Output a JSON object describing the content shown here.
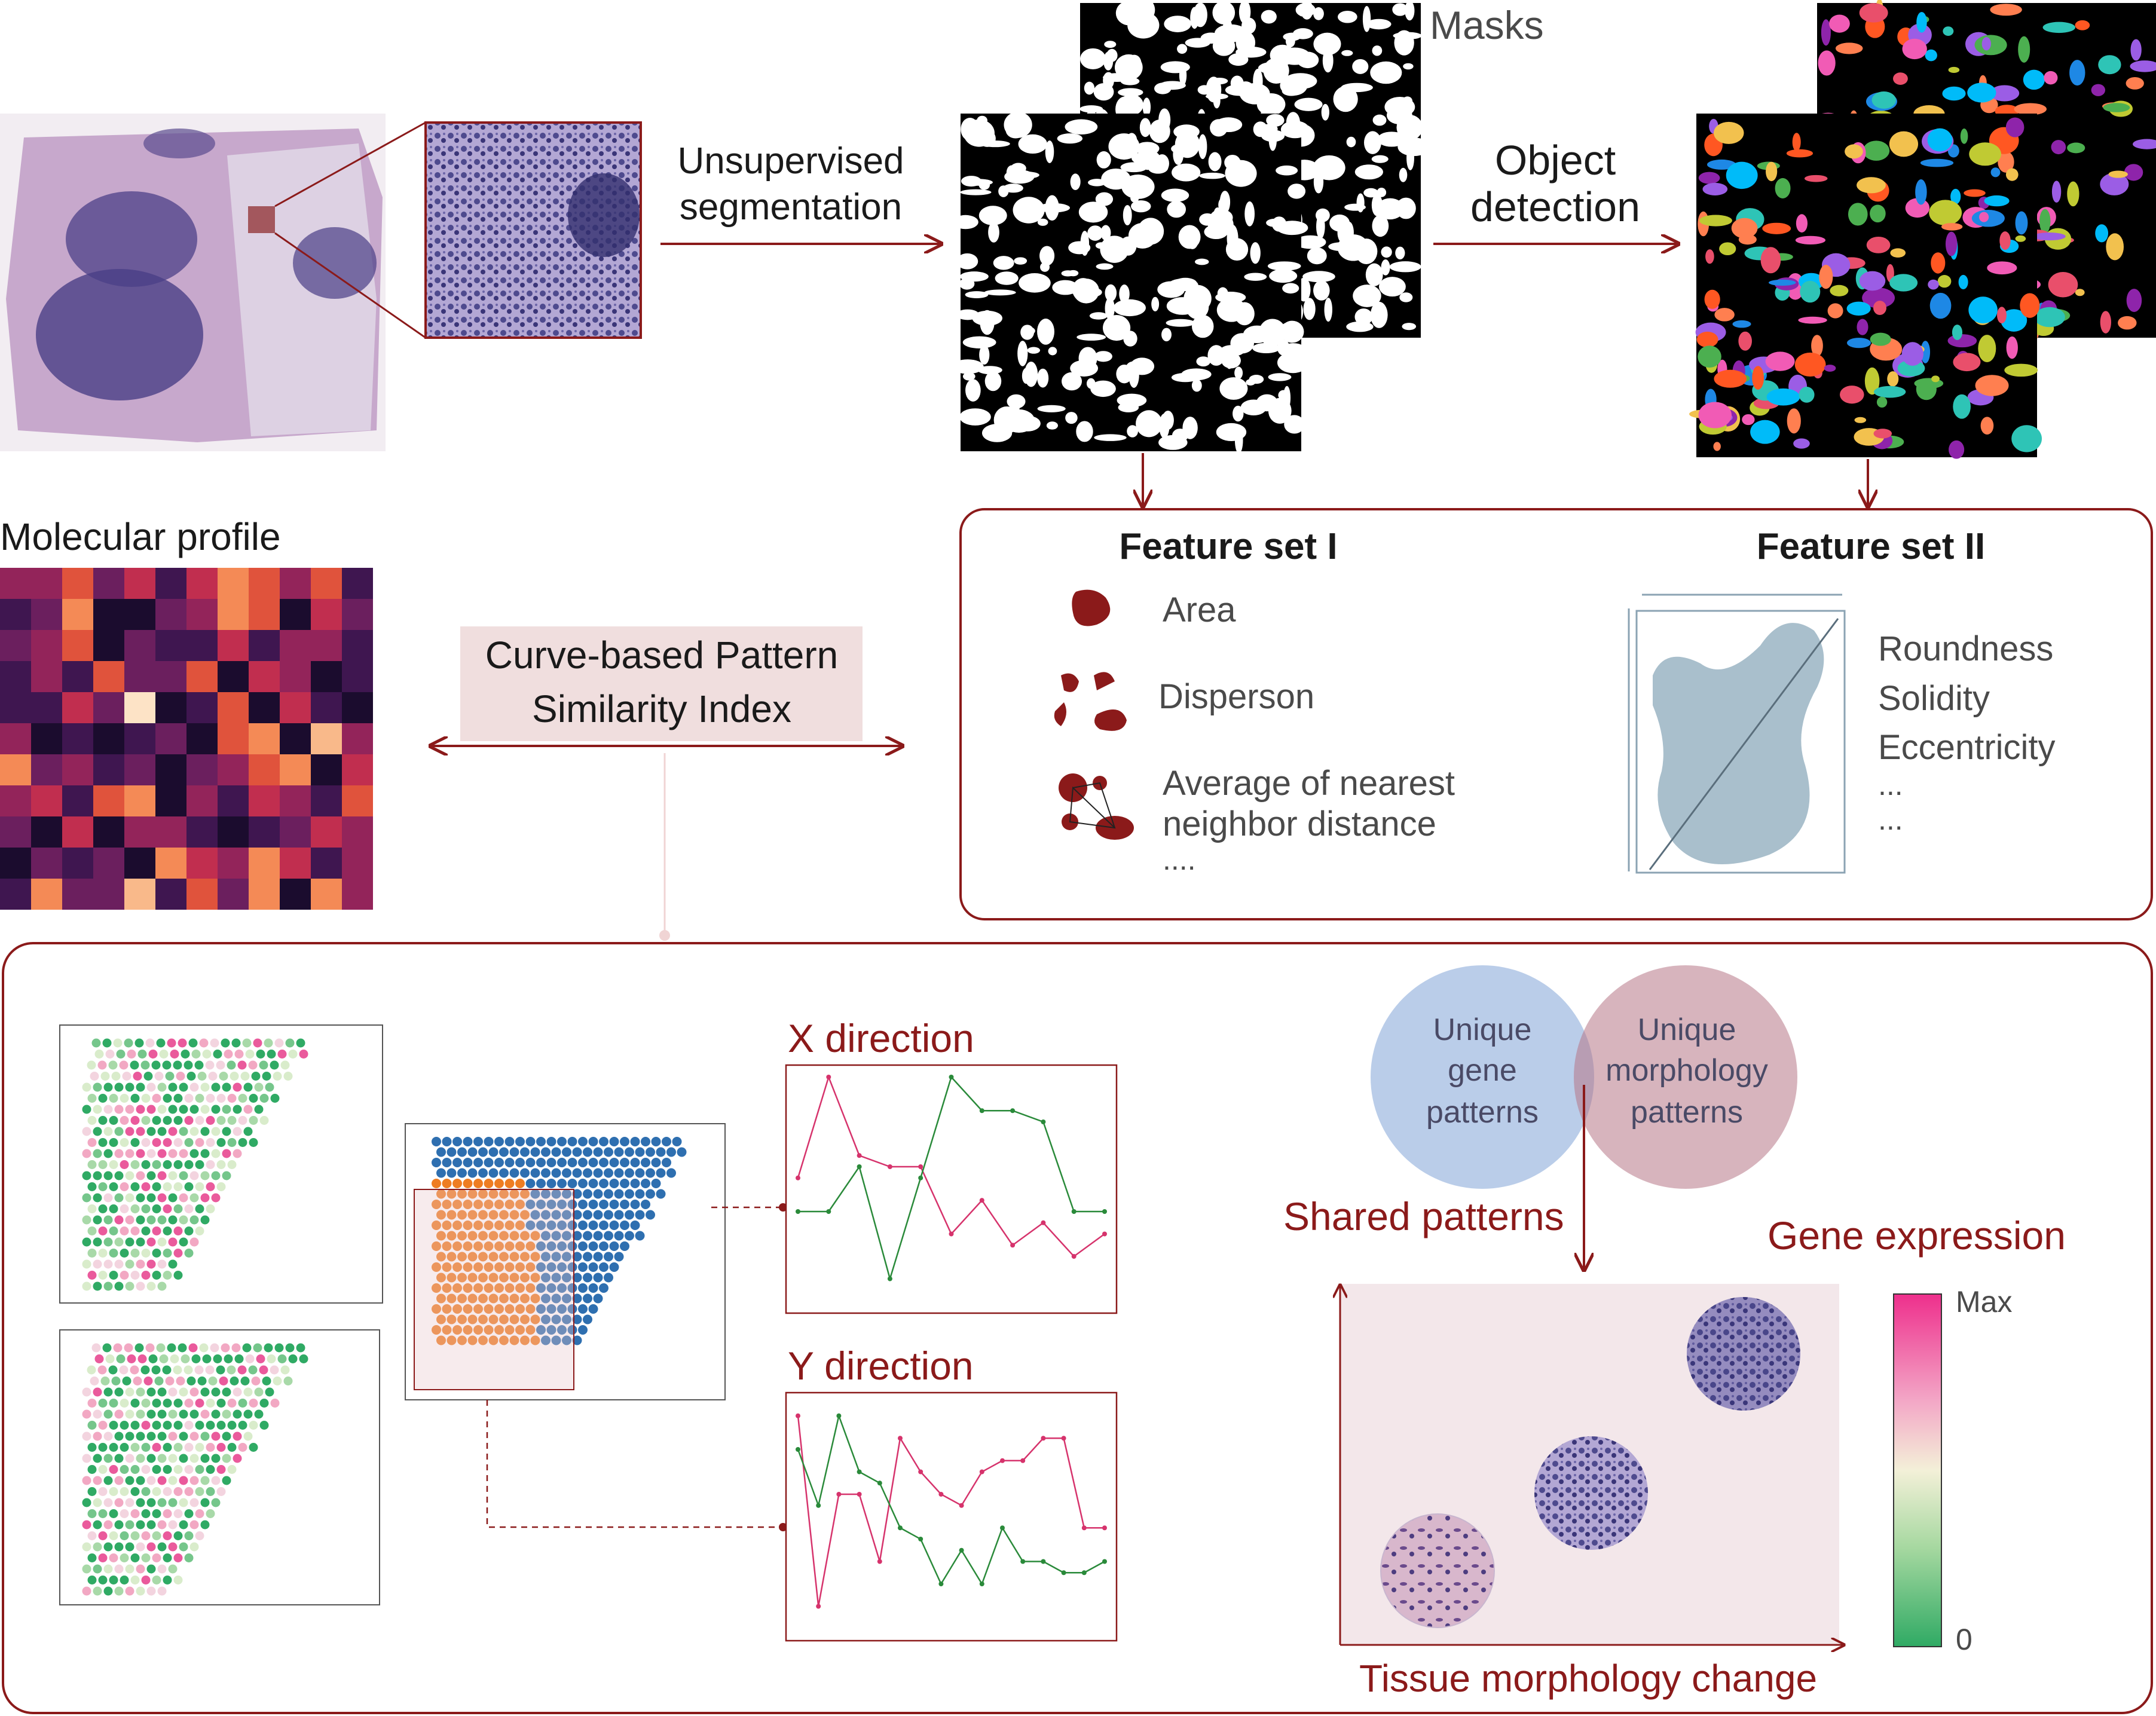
{
  "top": {
    "step1_line1": "Unsupervised",
    "step1_line2": "segmentation",
    "masks_label": "Masks",
    "step2_line1": "Object",
    "step2_line2": "detection"
  },
  "molecular": {
    "title": "Molecular profile",
    "heatmap_rows": [
      [
        3,
        3,
        5,
        2,
        4,
        1,
        4,
        6,
        5,
        3,
        5,
        1
      ],
      [
        1,
        2,
        6,
        0,
        0,
        2,
        3,
        6,
        5,
        0,
        4,
        2
      ],
      [
        2,
        3,
        5,
        0,
        2,
        1,
        1,
        4,
        1,
        3,
        3,
        1
      ],
      [
        1,
        3,
        1,
        5,
        2,
        2,
        5,
        0,
        4,
        3,
        0,
        1
      ],
      [
        1,
        1,
        4,
        2,
        8,
        0,
        1,
        5,
        0,
        4,
        1,
        0
      ],
      [
        3,
        0,
        1,
        0,
        1,
        2,
        0,
        5,
        6,
        0,
        7,
        3
      ],
      [
        6,
        2,
        3,
        1,
        2,
        0,
        2,
        3,
        5,
        6,
        0,
        4
      ],
      [
        3,
        4,
        1,
        5,
        6,
        0,
        3,
        1,
        4,
        3,
        1,
        5
      ],
      [
        2,
        0,
        4,
        0,
        3,
        3,
        1,
        0,
        1,
        2,
        4,
        3
      ],
      [
        0,
        2,
        1,
        2,
        0,
        6,
        4,
        3,
        6,
        4,
        1,
        3
      ],
      [
        1,
        6,
        2,
        2,
        7,
        1,
        5,
        2,
        6,
        0,
        6,
        3
      ]
    ],
    "palette": [
      "#1b0c2e",
      "#3f1650",
      "#6b1f5e",
      "#93245a",
      "#c12e4f",
      "#e0533c",
      "#f48a56",
      "#f9b98a",
      "#fde3c6"
    ]
  },
  "cpsi": {
    "line1": "Curve-based Pattern",
    "line2": "Similarity Index"
  },
  "features": {
    "set1_title": "Feature set I",
    "set1_items": [
      "Area",
      "Disperson",
      "Average of nearest",
      "neighbor distance",
      "...."
    ],
    "set2_title": "Feature set II",
    "set2_items": [
      "Roundness",
      "Solidity",
      "Eccentricity",
      "...",
      "..."
    ]
  },
  "bottom": {
    "x_direction": "X direction",
    "y_direction": "Y direction",
    "venn_left_1": "Unique",
    "venn_left_2": "gene",
    "venn_left_3": "patterns",
    "venn_right_1": "Unique",
    "venn_right_2": "morphology",
    "venn_right_3": "patterns",
    "shared": "Shared patterns",
    "gene_expression": "Gene expression",
    "scale_max": "Max",
    "scale_min": "0",
    "x_axis_label": "Tissue morphology change"
  },
  "colors": {
    "accent_red": "#8b1a1a",
    "venn_blue": "#a9c0e3",
    "venn_pink": "#b77786",
    "cluster_blue": "#2e6fb0",
    "cluster_orange": "#ee7d22",
    "curve_pink": "#d6336c",
    "curve_green": "#2a8a3a",
    "feature_shape": "#a9bfcc"
  },
  "chart_data": [
    {
      "type": "line",
      "title": "X direction",
      "x": [
        1,
        2,
        3,
        4,
        5,
        6,
        7,
        8,
        9,
        10,
        11
      ],
      "series": [
        {
          "values": [
            0.55,
            1.0,
            0.65,
            0.6,
            0.6,
            0.3,
            0.45,
            0.25,
            0.35,
            0.2,
            0.3
          ]
        },
        {
          "values": [
            0.4,
            0.4,
            0.6,
            0.1,
            0.55,
            1.0,
            0.85,
            0.85,
            0.8,
            0.4,
            0.4
          ]
        }
      ],
      "ylim": [
        0,
        1
      ]
    },
    {
      "type": "line",
      "title": "Y direction",
      "x": [
        1,
        2,
        3,
        4,
        5,
        6,
        7,
        8,
        9,
        10,
        11,
        12,
        13,
        14,
        15,
        16
      ],
      "series": [
        {
          "values": [
            0.95,
            0.1,
            0.6,
            0.6,
            0.3,
            0.85,
            0.7,
            0.6,
            0.55,
            0.7,
            0.75,
            0.75,
            0.85,
            0.85,
            0.45,
            0.45
          ]
        },
        {
          "values": [
            0.8,
            0.55,
            0.95,
            0.7,
            0.65,
            0.45,
            0.4,
            0.2,
            0.35,
            0.2,
            0.45,
            0.3,
            0.3,
            0.25,
            0.25,
            0.3
          ]
        }
      ],
      "ylim": [
        0,
        1
      ]
    }
  ]
}
